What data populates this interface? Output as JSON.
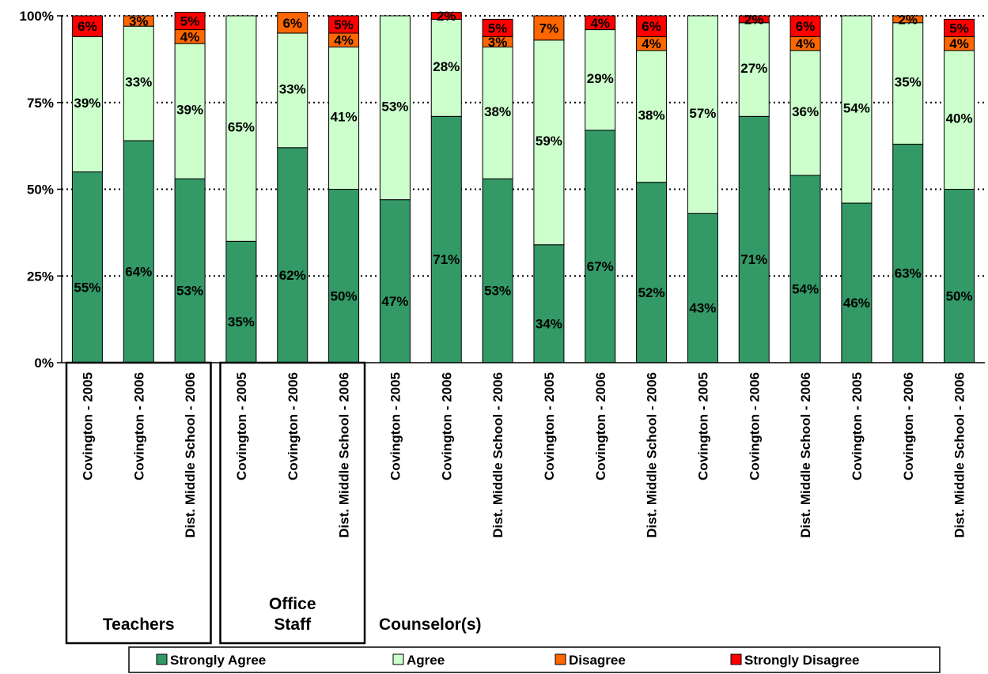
{
  "chart_data": {
    "type": "bar",
    "stacked": true,
    "normalized": true,
    "yticks": [
      "0%",
      "25%",
      "50%",
      "75%",
      "100%"
    ],
    "ylim": [
      0,
      100
    ],
    "grid": true,
    "legend_position": "bottom",
    "categories": [
      "Covington - 2005",
      "Covington - 2006",
      "Dist. Middle School - 2006",
      "Covington - 2005",
      "Covington - 2006",
      "Dist. Middle School - 2006",
      "Covington - 2005",
      "Covington - 2006",
      "Dist. Middle School - 2006",
      "Covington - 2005",
      "Covington - 2006",
      "Dist. Middle School - 2006",
      "Covington - 2005",
      "Covington - 2006",
      "Dist. Middle School - 2006",
      "Covington - 2005",
      "Covington - 2006",
      "Dist. Middle School - 2006"
    ],
    "groups": [
      {
        "label": "Teachers",
        "start": 0,
        "end": 2,
        "boxed": true
      },
      {
        "label": "Office\nStaff",
        "start": 3,
        "end": 5,
        "boxed": true
      },
      {
        "label": "Counselor(s)",
        "start": 6,
        "end": 17,
        "boxed": false
      }
    ],
    "series": [
      {
        "name": "Strongly Agree",
        "color": "#339966",
        "values": [
          55,
          64,
          53,
          35,
          62,
          50,
          47,
          71,
          53,
          34,
          67,
          52,
          43,
          71,
          54,
          46,
          63,
          50
        ],
        "labels": [
          "55%",
          "64%",
          "53%",
          "35%",
          "62%",
          "50%",
          "47%",
          "71%",
          "53%",
          "34%",
          "67%",
          "52%",
          "43%",
          "71%",
          "54%",
          "46%",
          "63%",
          "50%"
        ]
      },
      {
        "name": "Agree",
        "color": "#ccffcc",
        "values": [
          39,
          33,
          39,
          65,
          33,
          41,
          53,
          28,
          38,
          59,
          29,
          38,
          57,
          27,
          36,
          54,
          35,
          40
        ],
        "labels": [
          "39%",
          "33%",
          "39%",
          "65%",
          "33%",
          "41%",
          "53%",
          "28%",
          "38%",
          "59%",
          "29%",
          "38%",
          "57%",
          "27%",
          "36%",
          "54%",
          "35%",
          "40%"
        ]
      },
      {
        "name": "Disagree",
        "color": "#ff6600",
        "values": [
          0,
          3,
          4,
          0,
          6,
          4,
          0,
          0,
          3,
          7,
          0,
          4,
          0,
          0,
          4,
          0,
          2,
          4
        ],
        "labels": [
          "",
          "3%",
          "4%",
          "",
          "6%",
          "4%",
          "",
          "",
          "3%",
          "7%",
          "",
          "4%",
          "",
          "",
          "4%",
          "",
          "2%",
          "4%"
        ]
      },
      {
        "name": "Strongly Disagree",
        "color": "#ff0000",
        "values": [
          6,
          0,
          5,
          0,
          0,
          5,
          0,
          2,
          5,
          0,
          4,
          6,
          0,
          2,
          6,
          0,
          0,
          5
        ],
        "labels": [
          "6%",
          "",
          "5%",
          "",
          "",
          "5%",
          "",
          "2%",
          "5%",
          "",
          "4%",
          "6%",
          "",
          "2%",
          "6%",
          "",
          "",
          "5%"
        ]
      }
    ]
  }
}
